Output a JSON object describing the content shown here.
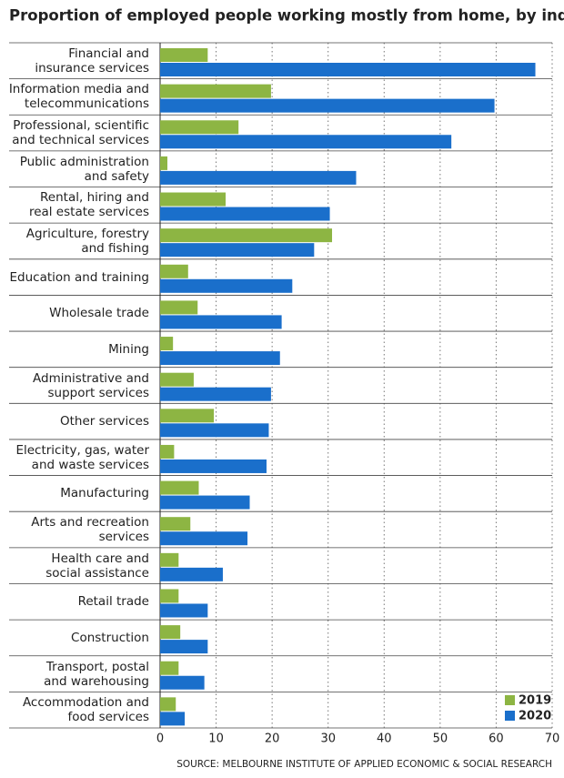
{
  "chart_data": {
    "type": "hbar",
    "title": "Proportion of employed people working mostly from home, by industry (%)",
    "categories": [
      "Financial and\ninsurance services",
      "Information media and\ntelecommunications",
      "Professional, scientific\nand technical services",
      "Public administration\nand safety",
      "Rental, hiring and\nreal estate services",
      "Agriculture, forestry\nand fishing",
      "Education and training",
      "Wholesale trade",
      "Mining",
      "Administrative and\nsupport services",
      "Other services",
      "Electricity, gas, water\nand waste services",
      "Manufacturing",
      "Arts and recreation\nservices",
      "Health care and\nsocial assistance",
      "Retail trade",
      "Construction",
      "Transport, postal\nand warehousing",
      "Accommodation and\nfood services"
    ],
    "series": [
      {
        "name": "2019",
        "color": "#8db543",
        "values": [
          8.5,
          19.8,
          14,
          1.3,
          11.7,
          30.7,
          5,
          6.7,
          2.3,
          6,
          9.6,
          2.5,
          6.9,
          5.4,
          3.3,
          3.3,
          3.6,
          3.3,
          2.8
        ]
      },
      {
        "name": "2020",
        "color": "#1a6fcb",
        "values": [
          67,
          59.7,
          52,
          35,
          30.3,
          27.5,
          23.6,
          21.7,
          21.4,
          19.8,
          19.4,
          19,
          16,
          15.6,
          11.2,
          8.5,
          8.5,
          7.9,
          4.4
        ]
      }
    ],
    "xlim": [
      0,
      70
    ],
    "xticks": [
      0,
      10,
      20,
      30,
      40,
      50,
      60,
      70
    ],
    "grid": true,
    "legend": "lower right",
    "source": "SOURCE: MELBOURNE INSTITUTE OF APPLIED ECONOMIC & SOCIAL RESEARCH"
  }
}
